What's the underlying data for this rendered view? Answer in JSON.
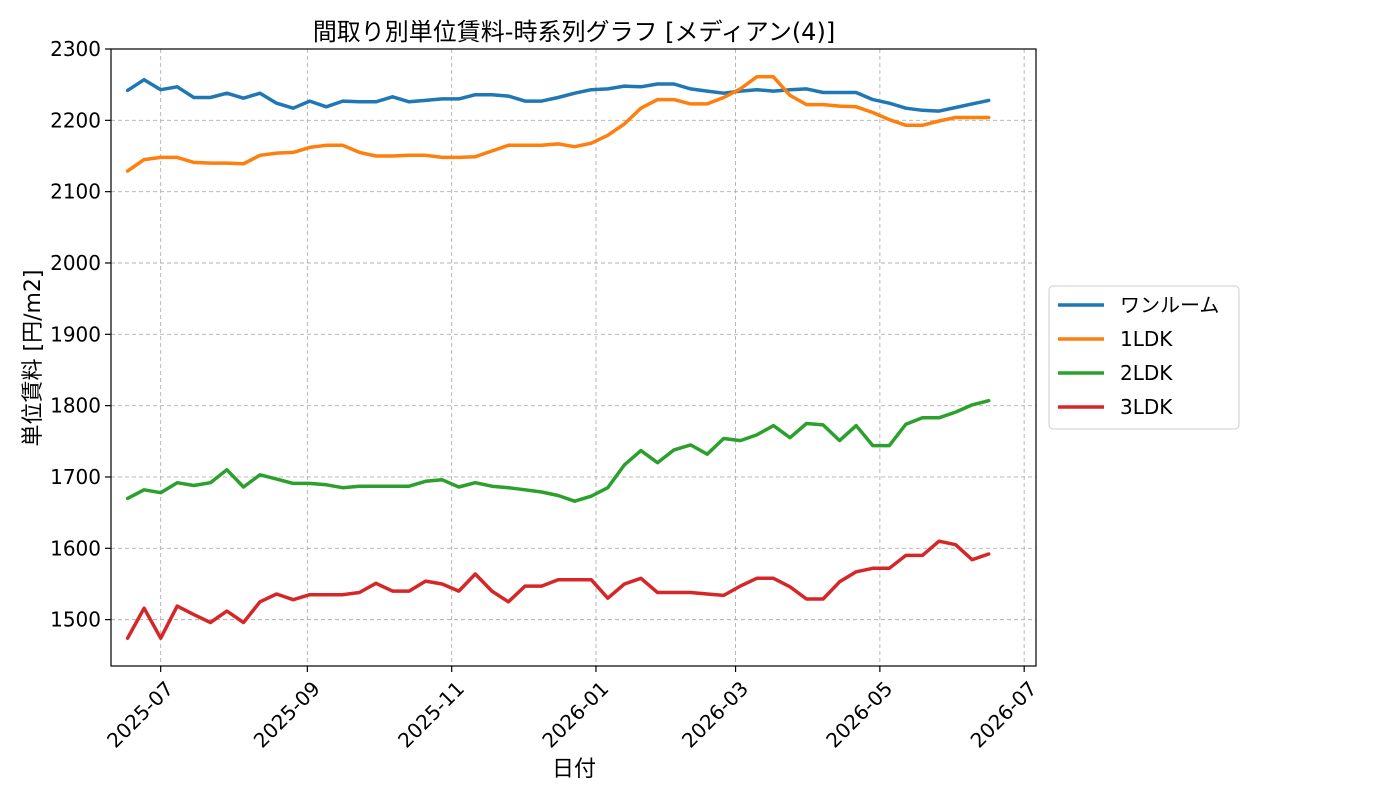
{
  "chart_data": {
    "type": "line",
    "title": "間取り別単位賃料-時系列グラフ [メディアン(4)]",
    "xlabel": "日付",
    "ylabel": "単位賃料 [円/m2]",
    "ylim": [
      1435,
      2300
    ],
    "yticks": [
      1500,
      1600,
      1700,
      1800,
      1900,
      2000,
      2100,
      2200,
      2300
    ],
    "xlim": [
      "2025-06-10",
      "2026-07-06"
    ],
    "xticks": [
      "2025-07",
      "2025-09",
      "2025-11",
      "2026-01",
      "2026-03",
      "2026-05",
      "2026-07"
    ],
    "grid": true,
    "legend_position": "right, outside",
    "x": [
      "2025-06-17",
      "2025-06-24",
      "2025-07-01",
      "2025-07-08",
      "2025-07-15",
      "2025-07-22",
      "2025-07-29",
      "2025-08-05",
      "2025-08-12",
      "2025-08-19",
      "2025-08-26",
      "2025-09-02",
      "2025-09-09",
      "2025-09-16",
      "2025-09-23",
      "2025-09-30",
      "2025-10-07",
      "2025-10-14",
      "2025-10-21",
      "2025-10-28",
      "2025-11-04",
      "2025-11-11",
      "2025-11-18",
      "2025-11-25",
      "2025-12-02",
      "2025-12-09",
      "2025-12-16",
      "2025-12-23",
      "2025-12-30",
      "2026-01-06",
      "2026-01-13",
      "2026-01-20",
      "2026-01-27",
      "2026-02-03",
      "2026-02-10",
      "2026-02-17",
      "2026-02-24",
      "2026-03-03",
      "2026-03-10",
      "2026-03-17",
      "2026-03-24",
      "2026-03-31",
      "2026-04-07",
      "2026-04-14",
      "2026-04-21",
      "2026-04-28",
      "2026-05-05",
      "2026-05-12",
      "2026-05-19",
      "2026-05-26",
      "2026-06-02",
      "2026-06-09",
      "2026-06-16"
    ],
    "series": [
      {
        "name": "ワンルーム",
        "color": "#1f77b4",
        "values": [
          2242,
          2257,
          2243,
          2247,
          2232,
          2232,
          2238,
          2231,
          2238,
          2224,
          2217,
          2227,
          2219,
          2227,
          2226,
          2226,
          2233,
          2226,
          2228,
          2230,
          2230,
          2236,
          2236,
          2234,
          2227,
          2227,
          2232,
          2238,
          2243,
          2244,
          2248,
          2247,
          2251,
          2251,
          2244,
          2241,
          2238,
          2241,
          2243,
          2241,
          2243,
          2244,
          2239,
          2239,
          2239,
          2229,
          2224,
          2217,
          2214,
          2213,
          2218,
          2223,
          2228
        ]
      },
      {
        "name": "1LDK",
        "color": "#ff7f0e",
        "values": [
          2129,
          2145,
          2148,
          2148,
          2141,
          2140,
          2140,
          2139,
          2151,
          2154,
          2155,
          2162,
          2165,
          2165,
          2155,
          2150,
          2150,
          2151,
          2151,
          2148,
          2148,
          2149,
          2157,
          2165,
          2165,
          2165,
          2167,
          2163,
          2168,
          2179,
          2195,
          2217,
          2229,
          2229,
          2223,
          2223,
          2232,
          2244,
          2261,
          2261,
          2235,
          2222,
          2222,
          2220,
          2219,
          2211,
          2201,
          2193,
          2193,
          2199,
          2204,
          2204,
          2204
        ]
      },
      {
        "name": "2LDK",
        "color": "#2ca02c",
        "values": [
          1670,
          1682,
          1678,
          1692,
          1688,
          1692,
          1710,
          1686,
          1703,
          1697,
          1691,
          1691,
          1689,
          1685,
          1687,
          1687,
          1687,
          1687,
          1694,
          1696,
          1686,
          1692,
          1687,
          1685,
          1682,
          1679,
          1674,
          1666,
          1673,
          1685,
          1717,
          1737,
          1720,
          1738,
          1745,
          1732,
          1754,
          1751,
          1759,
          1772,
          1755,
          1775,
          1773,
          1751,
          1772,
          1744,
          1744,
          1774,
          1783,
          1783,
          1791,
          1801,
          1807
        ]
      },
      {
        "name": "3LDK",
        "color": "#d62728",
        "values": [
          1474,
          1516,
          1474,
          1519,
          1507,
          1496,
          1512,
          1496,
          1525,
          1536,
          1528,
          1535,
          1535,
          1535,
          1538,
          1551,
          1540,
          1540,
          1554,
          1550,
          1540,
          1564,
          1540,
          1525,
          1547,
          1547,
          1556,
          1556,
          1556,
          1530,
          1550,
          1558,
          1538,
          1538,
          1538,
          1536,
          1534,
          1547,
          1558,
          1558,
          1546,
          1529,
          1529,
          1553,
          1567,
          1572,
          1572,
          1590,
          1590,
          1610,
          1605,
          1584,
          1592
        ]
      }
    ]
  }
}
